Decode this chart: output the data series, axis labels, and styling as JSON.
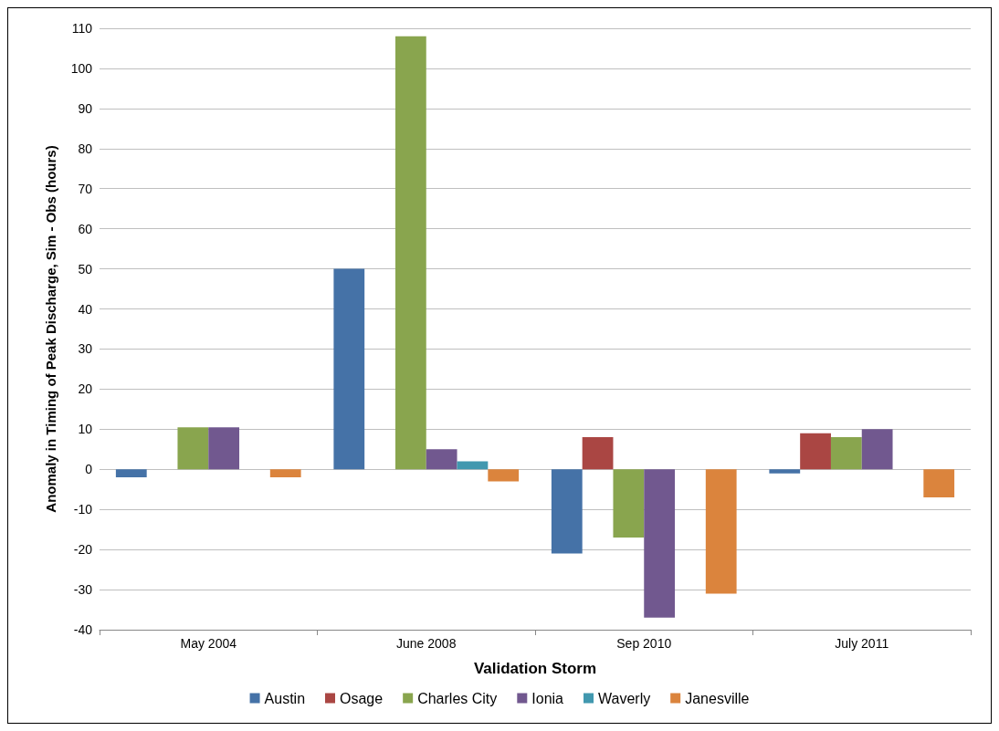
{
  "chart_data": {
    "type": "bar",
    "xlabel": "Validation Storm",
    "ylabel": "Anomaly in Timing of Peak Discharge, Sim - Obs (hours)",
    "categories": [
      "May 2004",
      "June 2008",
      "Sep 2010",
      "July 2011"
    ],
    "series": [
      {
        "name": "Austin",
        "color": "#4572a7",
        "values": [
          -2,
          50,
          -21,
          -1
        ]
      },
      {
        "name": "Osage",
        "color": "#aa4643",
        "values": [
          null,
          null,
          8,
          9
        ]
      },
      {
        "name": "Charles City",
        "color": "#89a54e",
        "values": [
          10.5,
          108,
          -17,
          8
        ]
      },
      {
        "name": "Ionia",
        "color": "#71588f",
        "values": [
          10.5,
          5,
          -37,
          10
        ]
      },
      {
        "name": "Waverly",
        "color": "#4198af",
        "values": [
          null,
          2,
          null,
          null
        ]
      },
      {
        "name": "Janesville",
        "color": "#db843d",
        "values": [
          -2,
          -3,
          -31,
          -7
        ]
      }
    ],
    "ylim": [
      -40,
      110
    ],
    "yticks": [
      -40,
      -30,
      -20,
      -10,
      0,
      10,
      20,
      30,
      40,
      50,
      60,
      70,
      80,
      90,
      100,
      110
    ],
    "grid": "y",
    "legend": "bottom"
  }
}
